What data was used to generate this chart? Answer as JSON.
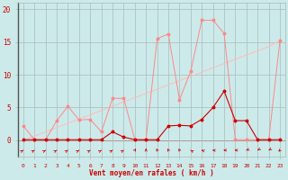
{
  "x": [
    0,
    1,
    2,
    3,
    4,
    5,
    6,
    7,
    8,
    9,
    10,
    11,
    12,
    13,
    14,
    15,
    16,
    17,
    18,
    19,
    20,
    21,
    22,
    23
  ],
  "rafales": [
    2.2,
    0.1,
    0.1,
    3.0,
    5.2,
    3.1,
    3.2,
    1.3,
    6.4,
    6.4,
    0.1,
    0.1,
    15.5,
    16.2,
    6.2,
    10.5,
    18.3,
    18.3,
    16.3,
    0.1,
    0.1,
    0.1,
    0.1,
    15.2
  ],
  "moyen": [
    0.1,
    0.1,
    0.1,
    0.1,
    0.1,
    0.1,
    0.1,
    0.1,
    1.3,
    0.5,
    0.1,
    0.1,
    0.1,
    2.2,
    2.3,
    2.2,
    3.2,
    5.0,
    7.5,
    3.0,
    3.0,
    0.1,
    0.1,
    0.1
  ],
  "trend": [
    0.0,
    0.65,
    1.3,
    1.95,
    2.6,
    3.25,
    3.9,
    4.55,
    5.2,
    5.85,
    6.5,
    7.15,
    7.8,
    8.45,
    9.1,
    9.75,
    10.4,
    11.05,
    11.7,
    12.35,
    13.0,
    13.65,
    14.3,
    15.2
  ],
  "bg_color": "#cceaea",
  "grid_color": "#aabbbb",
  "line_color_rafales": "#ff8888",
  "line_color_moyen": "#cc0000",
  "line_color_trend": "#ffbbbb",
  "xlabel": "Vent moyen/en rafales ( km/h )",
  "yticks": [
    0,
    5,
    10,
    15,
    20
  ],
  "xlim": [
    -0.5,
    23.5
  ],
  "ylim": [
    -2.5,
    21
  ],
  "wind_dirs_deg": [
    225,
    225,
    225,
    225,
    225,
    225,
    225,
    225,
    225,
    225,
    200,
    180,
    160,
    160,
    160,
    135,
    120,
    100,
    90,
    90,
    60,
    45,
    45,
    30
  ]
}
